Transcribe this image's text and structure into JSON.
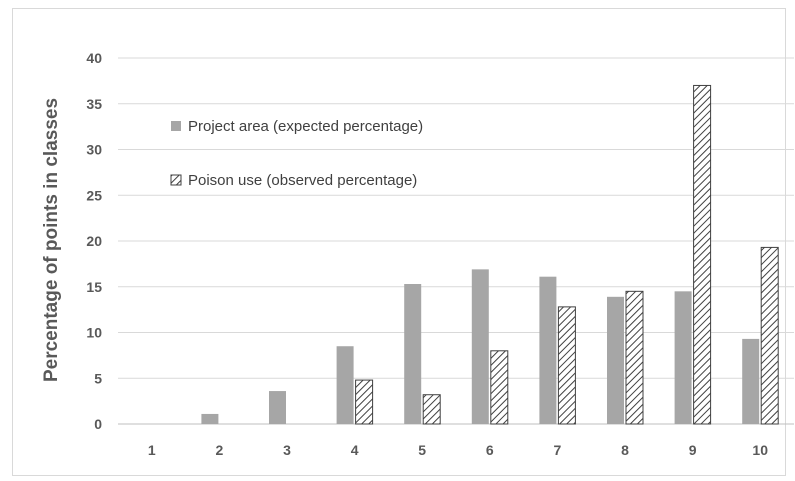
{
  "chart_data": {
    "type": "bar",
    "title": "",
    "xlabel": "",
    "ylabel": "Percentage of points in classes",
    "categories": [
      "1",
      "2",
      "3",
      "4",
      "5",
      "6",
      "7",
      "8",
      "9",
      "10"
    ],
    "ylim": [
      0,
      40
    ],
    "yticks": [
      0,
      5,
      10,
      15,
      20,
      25,
      30,
      35,
      40
    ],
    "grid": true,
    "legend_position": "upper-left inside plot",
    "series": [
      {
        "name": "Project area (expected percentage)",
        "style": "solid",
        "color": "#a6a6a6",
        "values": [
          0,
          1.1,
          3.6,
          8.5,
          15.3,
          16.9,
          16.1,
          13.9,
          14.5,
          9.3
        ]
      },
      {
        "name": "Poison use (observed percentage)",
        "style": "hatched",
        "color": "#404040",
        "values": [
          0,
          0,
          0,
          4.8,
          3.2,
          8.0,
          12.8,
          14.5,
          37.0,
          19.3
        ]
      }
    ]
  }
}
